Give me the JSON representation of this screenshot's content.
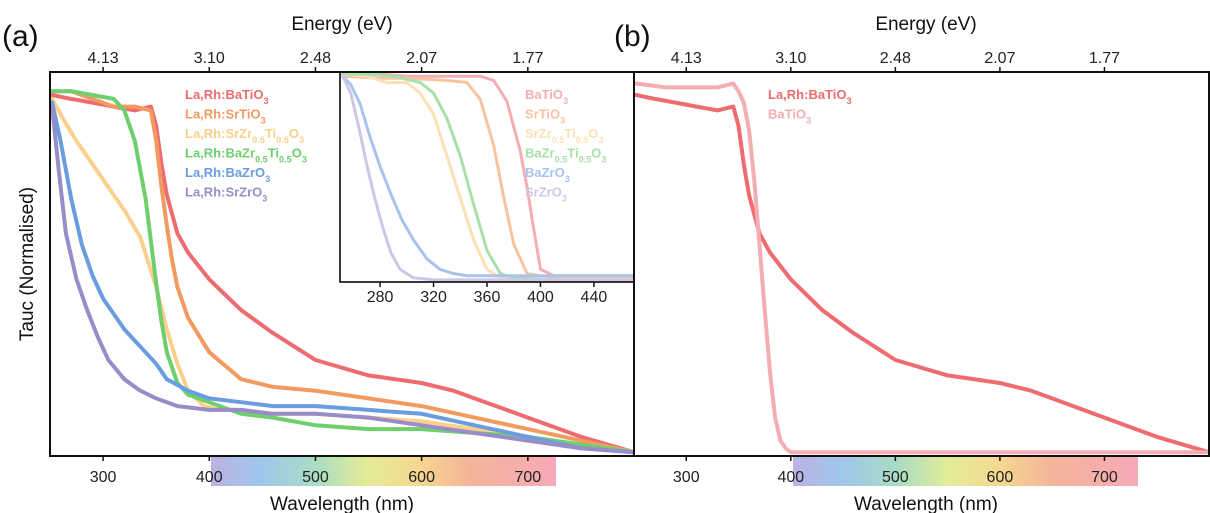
{
  "panels": [
    {
      "label": "(a)",
      "top_axis_title": "Energy (eV)",
      "top_ticks": [
        "4.13",
        "3.10",
        "2.48",
        "2.07",
        "1.77"
      ],
      "bottom_axis_title": "Wavelength (nm)",
      "y_axis_title": "Tauc (Normalised)"
    },
    {
      "label": "(b)",
      "top_axis_title": "Energy (eV)",
      "top_ticks": [
        "4.13",
        "3.10",
        "2.48",
        "2.07",
        "1.77"
      ],
      "bottom_axis_title": "Wavelength (nm)"
    }
  ],
  "chart_data": [
    {
      "type": "line",
      "xlabel": "Wavelength (nm)",
      "ylabel": "Tauc (Normalised)",
      "x2label": "Energy (eV)",
      "xlim": [
        250,
        800
      ],
      "ylim": [
        0,
        1
      ],
      "xticks": [
        300,
        400,
        500,
        600,
        700
      ],
      "x2ticks": [
        {
          "wavelength": 300,
          "label": "4.13"
        },
        {
          "wavelength": 400,
          "label": "3.10"
        },
        {
          "wavelength": 500,
          "label": "2.48"
        },
        {
          "wavelength": 600,
          "label": "2.07"
        },
        {
          "wavelength": 700,
          "label": "1.77"
        }
      ],
      "legend_position": "top-left",
      "series": [
        {
          "name": "La,Rh:BaTiO3",
          "color": "#ee6b6f",
          "x": [
            252,
            270,
            290,
            310,
            330,
            345,
            350,
            355,
            360,
            365,
            370,
            380,
            400,
            430,
            460,
            500,
            550,
            600,
            630,
            660,
            700,
            750,
            800
          ],
          "y": [
            0.94,
            0.93,
            0.92,
            0.91,
            0.9,
            0.91,
            0.86,
            0.76,
            0.68,
            0.63,
            0.58,
            0.53,
            0.46,
            0.38,
            0.32,
            0.25,
            0.21,
            0.19,
            0.17,
            0.14,
            0.1,
            0.05,
            0.01
          ]
        },
        {
          "name": "La,Rh:SrTiO3",
          "color": "#f29a5f",
          "x": [
            252,
            270,
            290,
            310,
            330,
            345,
            350,
            355,
            360,
            365,
            370,
            380,
            400,
            430,
            460,
            500,
            550,
            600,
            650,
            700,
            750,
            800
          ],
          "y": [
            0.95,
            0.95,
            0.93,
            0.91,
            0.91,
            0.9,
            0.82,
            0.7,
            0.6,
            0.51,
            0.44,
            0.36,
            0.27,
            0.2,
            0.18,
            0.17,
            0.15,
            0.13,
            0.1,
            0.07,
            0.04,
            0.01
          ]
        },
        {
          "name": "La,Rh:SrZr0.5Ti0.5O3",
          "color": "#fcd08c",
          "x": [
            252,
            262,
            275,
            290,
            305,
            320,
            335,
            350,
            360,
            370,
            380,
            395,
            410,
            430,
            460,
            500,
            550,
            600,
            650,
            700,
            750,
            800
          ],
          "y": [
            0.93,
            0.88,
            0.82,
            0.76,
            0.7,
            0.64,
            0.57,
            0.44,
            0.33,
            0.24,
            0.17,
            0.13,
            0.12,
            0.12,
            0.11,
            0.11,
            0.1,
            0.09,
            0.07,
            0.05,
            0.03,
            0.01
          ]
        },
        {
          "name": "La,Rh:BaZr0.5Ti0.5O3",
          "color": "#6fcf6f",
          "x": [
            252,
            270,
            290,
            310,
            320,
            330,
            340,
            345,
            350,
            355,
            360,
            370,
            380,
            400,
            430,
            460,
            500,
            550,
            600,
            650,
            700,
            750,
            800
          ],
          "y": [
            0.95,
            0.95,
            0.94,
            0.93,
            0.9,
            0.82,
            0.67,
            0.56,
            0.45,
            0.35,
            0.27,
            0.19,
            0.16,
            0.14,
            0.11,
            0.1,
            0.08,
            0.07,
            0.07,
            0.06,
            0.05,
            0.03,
            0.01
          ]
        },
        {
          "name": "La,Rh:BaZrO3",
          "color": "#6a9de0",
          "x": [
            252,
            260,
            270,
            280,
            290,
            300,
            310,
            320,
            330,
            340,
            350,
            360,
            380,
            400,
            430,
            460,
            500,
            550,
            600,
            650,
            700,
            750,
            800
          ],
          "y": [
            0.92,
            0.82,
            0.67,
            0.55,
            0.47,
            0.41,
            0.37,
            0.33,
            0.3,
            0.27,
            0.24,
            0.2,
            0.17,
            0.15,
            0.14,
            0.13,
            0.13,
            0.12,
            0.11,
            0.08,
            0.05,
            0.02,
            0.01
          ]
        },
        {
          "name": "La,Rh:SrZrO3",
          "color": "#9a8cc9",
          "x": [
            252,
            258,
            265,
            275,
            285,
            295,
            305,
            320,
            335,
            350,
            370,
            400,
            430,
            460,
            500,
            550,
            600,
            650,
            700,
            750,
            800
          ],
          "y": [
            0.91,
            0.75,
            0.58,
            0.46,
            0.38,
            0.31,
            0.25,
            0.2,
            0.17,
            0.15,
            0.13,
            0.12,
            0.12,
            0.11,
            0.11,
            0.1,
            0.08,
            0.06,
            0.04,
            0.02,
            0.01
          ]
        }
      ]
    },
    {
      "type": "line",
      "xlabel": "Wavelength (nm)",
      "xlim": [
        250,
        470
      ],
      "ylim": [
        0,
        1
      ],
      "xticks": [
        280,
        320,
        360,
        400,
        440
      ],
      "legend_position": "top-right",
      "series": [
        {
          "name": "BaTiO3",
          "color": "#f4aeb1",
          "x": [
            252,
            280,
            300,
            330,
            355,
            365,
            375,
            385,
            390,
            395,
            400,
            410,
            430,
            470
          ],
          "y": [
            0.99,
            0.99,
            0.98,
            0.98,
            0.98,
            0.96,
            0.86,
            0.62,
            0.45,
            0.25,
            0.06,
            0.03,
            0.03,
            0.03
          ]
        },
        {
          "name": "SrTiO3",
          "color": "#f7c3a1",
          "x": [
            252,
            280,
            300,
            330,
            345,
            355,
            365,
            372,
            380,
            390,
            410,
            440,
            470
          ],
          "y": [
            0.98,
            0.97,
            0.97,
            0.96,
            0.95,
            0.87,
            0.65,
            0.42,
            0.18,
            0.04,
            0.02,
            0.02,
            0.02
          ]
        },
        {
          "name": "SrZr0.5Ti0.5O3",
          "color": "#fde1b6",
          "x": [
            252,
            270,
            285,
            300,
            310,
            320,
            330,
            340,
            350,
            360,
            370,
            390,
            440,
            470
          ],
          "y": [
            0.99,
            0.98,
            0.95,
            0.95,
            0.9,
            0.8,
            0.6,
            0.4,
            0.2,
            0.06,
            0.02,
            0.01,
            0.01,
            0.01
          ]
        },
        {
          "name": "BaZr0.5Ti0.5O3",
          "color": "#a9e0a9",
          "x": [
            252,
            270,
            290,
            310,
            320,
            330,
            340,
            350,
            360,
            370,
            380,
            410,
            470
          ],
          "y": [
            0.99,
            0.99,
            0.98,
            0.95,
            0.9,
            0.78,
            0.6,
            0.37,
            0.15,
            0.04,
            0.02,
            0.01,
            0.01
          ]
        },
        {
          "name": "BaZrO3",
          "color": "#a8c4ee",
          "x": [
            252,
            258,
            265,
            272,
            280,
            288,
            296,
            305,
            315,
            325,
            335,
            345,
            360,
            400,
            470
          ],
          "y": [
            0.98,
            0.94,
            0.85,
            0.7,
            0.55,
            0.42,
            0.3,
            0.2,
            0.11,
            0.06,
            0.04,
            0.03,
            0.03,
            0.03,
            0.03
          ]
        },
        {
          "name": "SrZrO3",
          "color": "#cdc6e6",
          "x": [
            252,
            258,
            264,
            270,
            276,
            282,
            288,
            295,
            305,
            320,
            340,
            470
          ],
          "y": [
            0.98,
            0.9,
            0.74,
            0.56,
            0.4,
            0.26,
            0.14,
            0.06,
            0.02,
            0.01,
            0.01,
            0.01
          ]
        }
      ]
    },
    {
      "type": "line",
      "xlabel": "Wavelength (nm)",
      "x2label": "Energy (eV)",
      "xlim": [
        250,
        800
      ],
      "ylim": [
        0,
        1
      ],
      "xticks": [
        300,
        400,
        500,
        600,
        700
      ],
      "x2ticks": [
        {
          "wavelength": 300,
          "label": "4.13"
        },
        {
          "wavelength": 400,
          "label": "3.10"
        },
        {
          "wavelength": 500,
          "label": "2.48"
        },
        {
          "wavelength": 600,
          "label": "2.07"
        },
        {
          "wavelength": 700,
          "label": "1.77"
        }
      ],
      "legend_position": "top-left",
      "series": [
        {
          "name": "La,Rh:BaTiO3",
          "color": "#ee6b6f",
          "x": [
            252,
            270,
            290,
            310,
            330,
            345,
            350,
            355,
            360,
            365,
            370,
            380,
            400,
            430,
            460,
            500,
            550,
            600,
            630,
            660,
            700,
            750,
            800
          ],
          "y": [
            0.94,
            0.93,
            0.92,
            0.91,
            0.9,
            0.91,
            0.86,
            0.76,
            0.68,
            0.63,
            0.58,
            0.53,
            0.46,
            0.38,
            0.32,
            0.25,
            0.21,
            0.19,
            0.17,
            0.14,
            0.1,
            0.05,
            0.01
          ]
        },
        {
          "name": "BaTiO3",
          "color": "#f4aeb1",
          "x": [
            252,
            280,
            300,
            330,
            345,
            350,
            355,
            360,
            365,
            370,
            375,
            380,
            385,
            390,
            395,
            400,
            420,
            500,
            800
          ],
          "y": [
            0.97,
            0.96,
            0.96,
            0.96,
            0.97,
            0.95,
            0.92,
            0.85,
            0.72,
            0.55,
            0.38,
            0.22,
            0.1,
            0.04,
            0.02,
            0.01,
            0.01,
            0.01,
            0.01
          ]
        }
      ]
    }
  ],
  "legend_a": [
    {
      "base": "La,Rh:BaTiO",
      "sub": "3",
      "rest": "",
      "color": "#ee6b6f"
    },
    {
      "base": "La,Rh:SrTiO",
      "sub": "3",
      "rest": "",
      "color": "#f29a5f"
    },
    {
      "base": "La,Rh:SrZr",
      "sub": "0.5",
      "rest": "Ti",
      "sub2": "0.5",
      "tail": "O",
      "sub3": "3",
      "color": "#fcd08c"
    },
    {
      "base": "La,Rh:BaZr",
      "sub": "0.5",
      "rest": "Ti",
      "sub2": "0.5",
      "tail": "O",
      "sub3": "3",
      "color": "#6fcf6f"
    },
    {
      "base": "La,Rh:BaZrO",
      "sub": "3",
      "rest": "",
      "color": "#6a9de0"
    },
    {
      "base": "La,Rh:SrZrO",
      "sub": "3",
      "rest": "",
      "color": "#9a8cc9"
    }
  ],
  "legend_inset": [
    {
      "base": "BaTiO",
      "sub": "3",
      "rest": "",
      "color": "#f4aeb1"
    },
    {
      "base": "SrTiO",
      "sub": "3",
      "rest": "",
      "color": "#f7c3a1"
    },
    {
      "base": "SrZr",
      "sub": "0.5",
      "rest": "Ti",
      "sub2": "0.5",
      "tail": "O",
      "sub3": "3",
      "color": "#fde1b6"
    },
    {
      "base": "BaZr",
      "sub": "0.5",
      "rest": "Ti",
      "sub2": "0.5",
      "tail": "O",
      "sub3": "3",
      "color": "#a9e0a9"
    },
    {
      "base": "BaZrO",
      "sub": "3",
      "rest": "",
      "color": "#a8c4ee"
    },
    {
      "base": "SrZrO",
      "sub": "3",
      "rest": "",
      "color": "#cdc6e6"
    }
  ],
  "legend_b": [
    {
      "base": "La,Rh:BaTiO",
      "sub": "3",
      "rest": "",
      "color": "#ee6b6f"
    },
    {
      "base": "BaTiO",
      "sub": "3",
      "rest": "",
      "color": "#f4aeb1"
    }
  ]
}
